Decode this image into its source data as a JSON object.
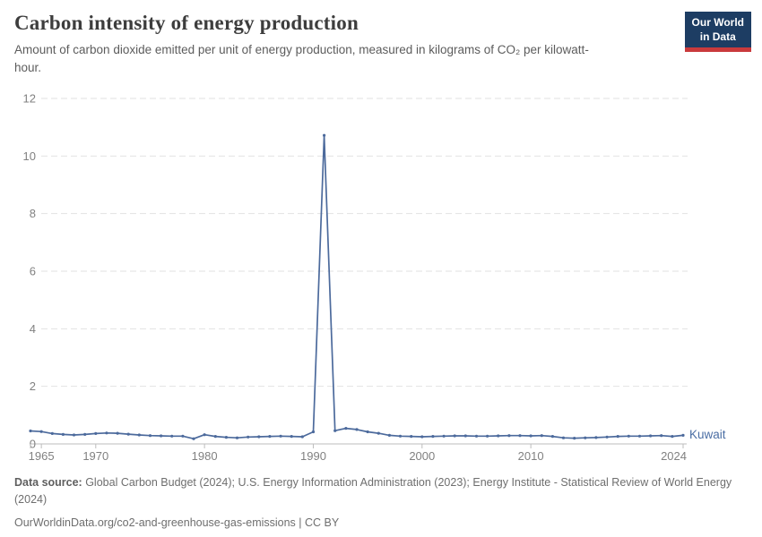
{
  "header": {
    "title": "Carbon intensity of energy production",
    "subtitle": "Amount of carbon dioxide emitted per unit of energy production, measured in kilograms of CO₂ per kilowatt-hour."
  },
  "logo": {
    "line1": "Our World",
    "line2": "in Data",
    "background_color": "#1d3d63",
    "accent_color": "#c93a3c"
  },
  "chart_data": {
    "type": "line",
    "title": "Carbon intensity of energy production",
    "ylabel": "",
    "xlabel": "",
    "unit": "kilograms of CO₂ per kilowatt-hour",
    "ylim": [
      0,
      12
    ],
    "xlim": [
      1964,
      2024
    ],
    "y_ticks": [
      0,
      2,
      4,
      6,
      8,
      10,
      12
    ],
    "x_ticks": [
      1965,
      1970,
      1980,
      1990,
      2000,
      2010,
      2024
    ],
    "grid": "horizontal dashed",
    "legend_position": "end-of-line label",
    "entity_label": "Kuwait",
    "peak_annotation": {
      "year": 1991,
      "value": 10.72
    },
    "series": [
      {
        "name": "Kuwait",
        "color": "#4c6a9c",
        "x": [
          1964,
          1965,
          1966,
          1967,
          1968,
          1969,
          1970,
          1971,
          1972,
          1973,
          1974,
          1975,
          1976,
          1977,
          1978,
          1979,
          1980,
          1981,
          1982,
          1983,
          1984,
          1985,
          1986,
          1987,
          1988,
          1989,
          1990,
          1991,
          1992,
          1993,
          1994,
          1995,
          1996,
          1997,
          1998,
          1999,
          2000,
          2001,
          2002,
          2003,
          2004,
          2005,
          2006,
          2007,
          2008,
          2009,
          2010,
          2011,
          2012,
          2013,
          2014,
          2015,
          2016,
          2017,
          2018,
          2019,
          2020,
          2021,
          2022,
          2023,
          2024
        ],
        "values": [
          0.45,
          0.43,
          0.36,
          0.33,
          0.31,
          0.33,
          0.36,
          0.38,
          0.37,
          0.34,
          0.31,
          0.29,
          0.28,
          0.27,
          0.27,
          0.18,
          0.32,
          0.26,
          0.23,
          0.21,
          0.24,
          0.25,
          0.26,
          0.27,
          0.26,
          0.25,
          0.42,
          10.72,
          0.46,
          0.54,
          0.5,
          0.42,
          0.37,
          0.3,
          0.27,
          0.26,
          0.25,
          0.26,
          0.27,
          0.28,
          0.28,
          0.27,
          0.27,
          0.28,
          0.29,
          0.29,
          0.28,
          0.29,
          0.26,
          0.21,
          0.2,
          0.21,
          0.22,
          0.24,
          0.26,
          0.27,
          0.27,
          0.28,
          0.29,
          0.26,
          0.3
        ]
      }
    ]
  },
  "footer": {
    "source_label": "Data source:",
    "source_text": " Global Carbon Budget (2024); U.S. Energy Information Administration (2023); Energy Institute - Statistical Review of World Energy (2024)",
    "attribution": "OurWorldinData.org/co2-and-greenhouse-gas-emissions | CC BY"
  },
  "colors": {
    "line": "#4c6a9c",
    "axis_text": "#818181",
    "gridline": "#e2e2e2",
    "axis_line": "#bdbdbd",
    "title_text": "#3d3d3d",
    "subtitle_text": "#5c5c5c",
    "footer_text": "#6e6e6e"
  }
}
